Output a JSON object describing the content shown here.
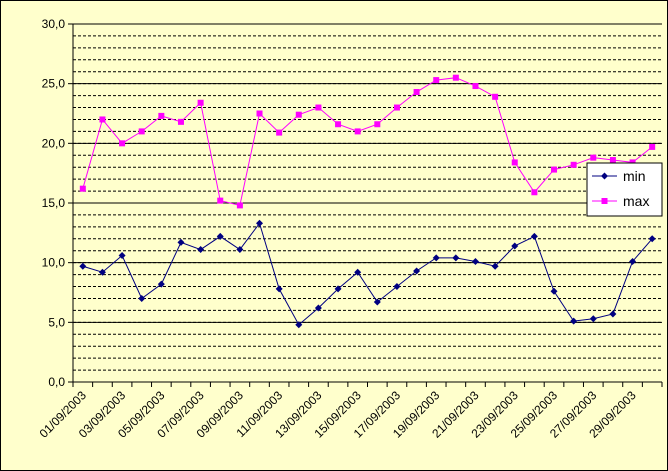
{
  "chart_data": {
    "type": "line",
    "categories": [
      "01/09/2003",
      null,
      "03/09/2003",
      null,
      "05/09/2003",
      null,
      "07/09/2003",
      null,
      "09/09/2003",
      null,
      "11/09/2003",
      null,
      "13/09/2003",
      null,
      "15/09/2003",
      null,
      "17/09/2003",
      null,
      "19/09/2003",
      null,
      "21/09/2003",
      null,
      "23/09/2003",
      null,
      "25/09/2003",
      null,
      "27/09/2003",
      null,
      "29/09/2003",
      null
    ],
    "series": [
      {
        "name": "min",
        "color": "#000080",
        "marker": "diamond",
        "values": [
          9.7,
          9.2,
          10.6,
          7.0,
          8.2,
          11.7,
          11.1,
          12.2,
          11.1,
          13.3,
          7.8,
          4.8,
          6.2,
          7.8,
          9.2,
          6.7,
          8.0,
          9.3,
          10.4,
          10.4,
          10.1,
          9.7,
          11.4,
          12.2,
          7.6,
          5.1,
          5.3,
          5.7,
          10.1,
          12.0
        ]
      },
      {
        "name": "max",
        "color": "#FF00FF",
        "marker": "square",
        "values": [
          16.2,
          22.0,
          20.0,
          21.0,
          22.3,
          21.8,
          23.4,
          15.2,
          14.8,
          22.5,
          20.9,
          22.4,
          23.0,
          21.6,
          21.0,
          21.6,
          23.0,
          24.3,
          25.3,
          25.5,
          24.8,
          23.9,
          18.4,
          15.9,
          17.8,
          18.2,
          18.8,
          18.6,
          18.4,
          19.7
        ]
      }
    ],
    "ylim": [
      0,
      30
    ],
    "yticks": [
      {
        "value": 0,
        "label": "0,0"
      },
      {
        "value": 5,
        "label": "5,0"
      },
      {
        "value": 10,
        "label": "10,0"
      },
      {
        "value": 15,
        "label": "15,0"
      },
      {
        "value": 20,
        "label": "20,0"
      },
      {
        "value": 25,
        "label": "25,0"
      },
      {
        "value": 30,
        "label": "30,0"
      }
    ],
    "grid": true,
    "minor_ystep": 1,
    "legend": "right"
  }
}
